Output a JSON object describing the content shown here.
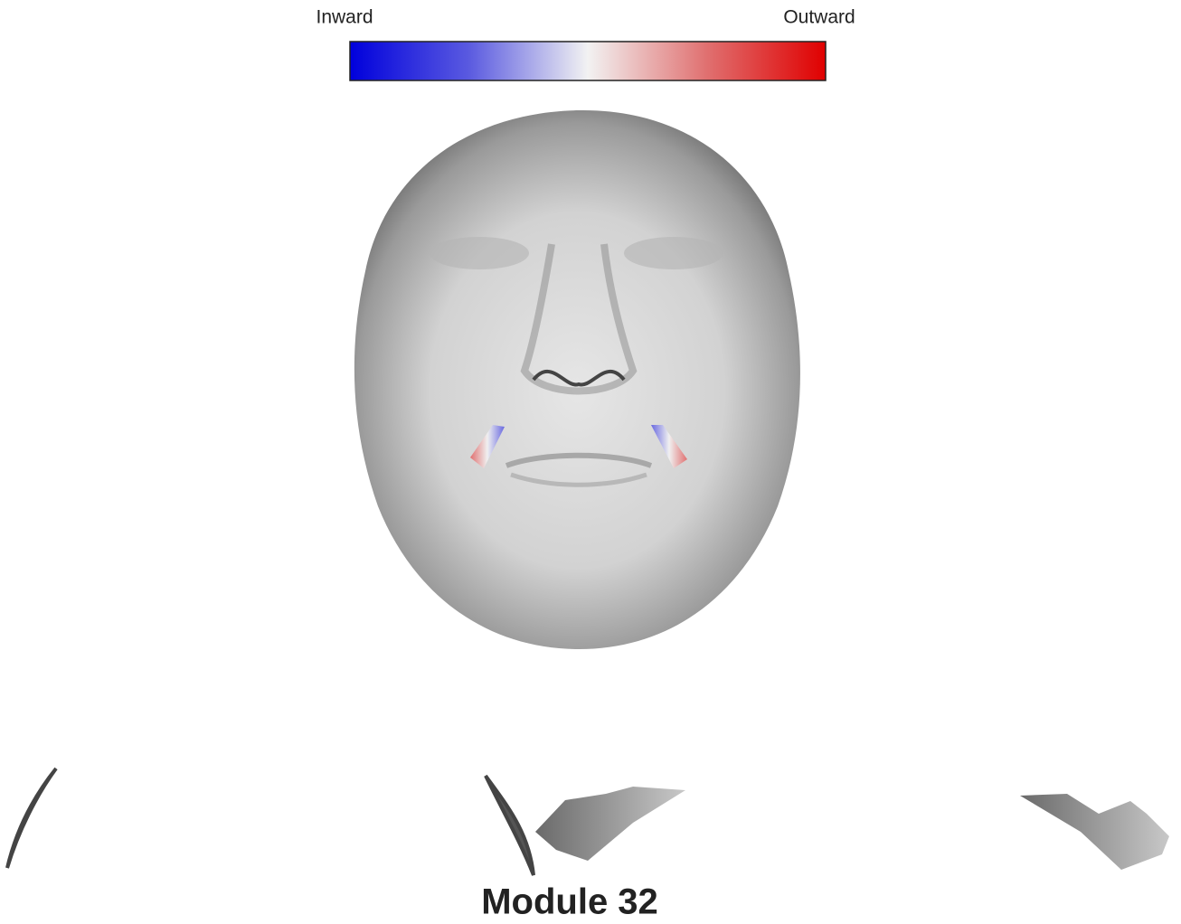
{
  "colorbar": {
    "left_label": "Inward",
    "right_label": "Outward"
  },
  "title": "Module 32"
}
